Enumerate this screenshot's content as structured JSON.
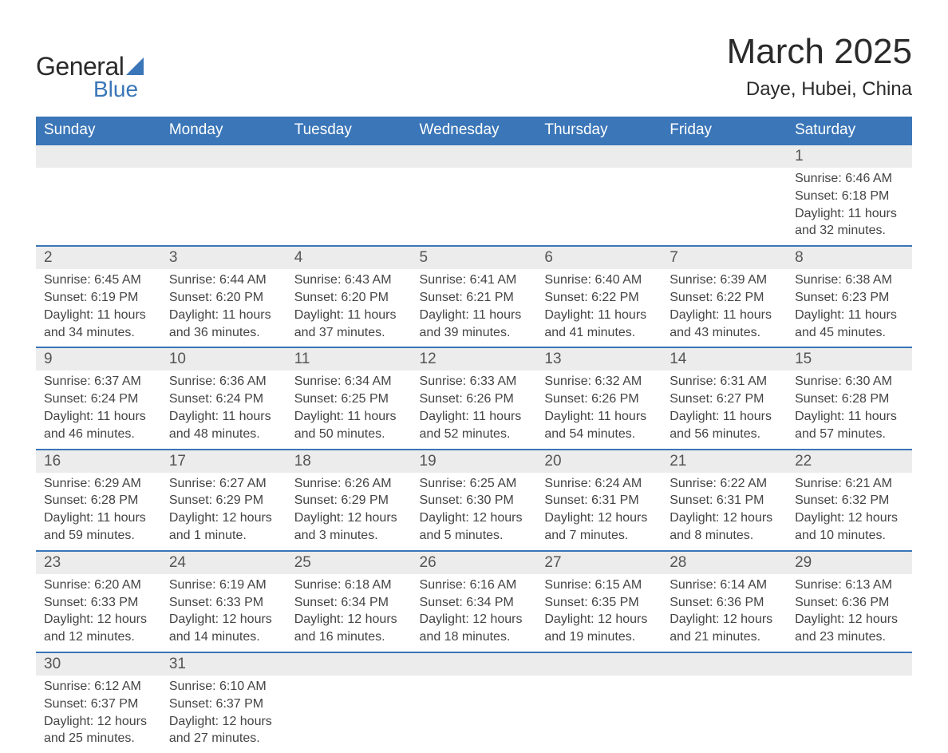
{
  "brand": {
    "word1": "General",
    "word2": "Blue",
    "accent_color": "#3a76b8"
  },
  "title": "March 2025",
  "location": "Daye, Hubei, China",
  "header_bg": "#3a76b8",
  "daynum_bg": "#ececec",
  "text_color": "#333333",
  "weekdays": [
    "Sunday",
    "Monday",
    "Tuesday",
    "Wednesday",
    "Thursday",
    "Friday",
    "Saturday"
  ],
  "weeks": [
    {
      "nums": [
        "",
        "",
        "",
        "",
        "",
        "",
        "1"
      ],
      "details": [
        null,
        null,
        null,
        null,
        null,
        null,
        {
          "sunrise": "Sunrise: 6:46 AM",
          "sunset": "Sunset: 6:18 PM",
          "day1": "Daylight: 11 hours",
          "day2": "and 32 minutes."
        }
      ]
    },
    {
      "nums": [
        "2",
        "3",
        "4",
        "5",
        "6",
        "7",
        "8"
      ],
      "details": [
        {
          "sunrise": "Sunrise: 6:45 AM",
          "sunset": "Sunset: 6:19 PM",
          "day1": "Daylight: 11 hours",
          "day2": "and 34 minutes."
        },
        {
          "sunrise": "Sunrise: 6:44 AM",
          "sunset": "Sunset: 6:20 PM",
          "day1": "Daylight: 11 hours",
          "day2": "and 36 minutes."
        },
        {
          "sunrise": "Sunrise: 6:43 AM",
          "sunset": "Sunset: 6:20 PM",
          "day1": "Daylight: 11 hours",
          "day2": "and 37 minutes."
        },
        {
          "sunrise": "Sunrise: 6:41 AM",
          "sunset": "Sunset: 6:21 PM",
          "day1": "Daylight: 11 hours",
          "day2": "and 39 minutes."
        },
        {
          "sunrise": "Sunrise: 6:40 AM",
          "sunset": "Sunset: 6:22 PM",
          "day1": "Daylight: 11 hours",
          "day2": "and 41 minutes."
        },
        {
          "sunrise": "Sunrise: 6:39 AM",
          "sunset": "Sunset: 6:22 PM",
          "day1": "Daylight: 11 hours",
          "day2": "and 43 minutes."
        },
        {
          "sunrise": "Sunrise: 6:38 AM",
          "sunset": "Sunset: 6:23 PM",
          "day1": "Daylight: 11 hours",
          "day2": "and 45 minutes."
        }
      ]
    },
    {
      "nums": [
        "9",
        "10",
        "11",
        "12",
        "13",
        "14",
        "15"
      ],
      "details": [
        {
          "sunrise": "Sunrise: 6:37 AM",
          "sunset": "Sunset: 6:24 PM",
          "day1": "Daylight: 11 hours",
          "day2": "and 46 minutes."
        },
        {
          "sunrise": "Sunrise: 6:36 AM",
          "sunset": "Sunset: 6:24 PM",
          "day1": "Daylight: 11 hours",
          "day2": "and 48 minutes."
        },
        {
          "sunrise": "Sunrise: 6:34 AM",
          "sunset": "Sunset: 6:25 PM",
          "day1": "Daylight: 11 hours",
          "day2": "and 50 minutes."
        },
        {
          "sunrise": "Sunrise: 6:33 AM",
          "sunset": "Sunset: 6:26 PM",
          "day1": "Daylight: 11 hours",
          "day2": "and 52 minutes."
        },
        {
          "sunrise": "Sunrise: 6:32 AM",
          "sunset": "Sunset: 6:26 PM",
          "day1": "Daylight: 11 hours",
          "day2": "and 54 minutes."
        },
        {
          "sunrise": "Sunrise: 6:31 AM",
          "sunset": "Sunset: 6:27 PM",
          "day1": "Daylight: 11 hours",
          "day2": "and 56 minutes."
        },
        {
          "sunrise": "Sunrise: 6:30 AM",
          "sunset": "Sunset: 6:28 PM",
          "day1": "Daylight: 11 hours",
          "day2": "and 57 minutes."
        }
      ]
    },
    {
      "nums": [
        "16",
        "17",
        "18",
        "19",
        "20",
        "21",
        "22"
      ],
      "details": [
        {
          "sunrise": "Sunrise: 6:29 AM",
          "sunset": "Sunset: 6:28 PM",
          "day1": "Daylight: 11 hours",
          "day2": "and 59 minutes."
        },
        {
          "sunrise": "Sunrise: 6:27 AM",
          "sunset": "Sunset: 6:29 PM",
          "day1": "Daylight: 12 hours",
          "day2": "and 1 minute."
        },
        {
          "sunrise": "Sunrise: 6:26 AM",
          "sunset": "Sunset: 6:29 PM",
          "day1": "Daylight: 12 hours",
          "day2": "and 3 minutes."
        },
        {
          "sunrise": "Sunrise: 6:25 AM",
          "sunset": "Sunset: 6:30 PM",
          "day1": "Daylight: 12 hours",
          "day2": "and 5 minutes."
        },
        {
          "sunrise": "Sunrise: 6:24 AM",
          "sunset": "Sunset: 6:31 PM",
          "day1": "Daylight: 12 hours",
          "day2": "and 7 minutes."
        },
        {
          "sunrise": "Sunrise: 6:22 AM",
          "sunset": "Sunset: 6:31 PM",
          "day1": "Daylight: 12 hours",
          "day2": "and 8 minutes."
        },
        {
          "sunrise": "Sunrise: 6:21 AM",
          "sunset": "Sunset: 6:32 PM",
          "day1": "Daylight: 12 hours",
          "day2": "and 10 minutes."
        }
      ]
    },
    {
      "nums": [
        "23",
        "24",
        "25",
        "26",
        "27",
        "28",
        "29"
      ],
      "details": [
        {
          "sunrise": "Sunrise: 6:20 AM",
          "sunset": "Sunset: 6:33 PM",
          "day1": "Daylight: 12 hours",
          "day2": "and 12 minutes."
        },
        {
          "sunrise": "Sunrise: 6:19 AM",
          "sunset": "Sunset: 6:33 PM",
          "day1": "Daylight: 12 hours",
          "day2": "and 14 minutes."
        },
        {
          "sunrise": "Sunrise: 6:18 AM",
          "sunset": "Sunset: 6:34 PM",
          "day1": "Daylight: 12 hours",
          "day2": "and 16 minutes."
        },
        {
          "sunrise": "Sunrise: 6:16 AM",
          "sunset": "Sunset: 6:34 PM",
          "day1": "Daylight: 12 hours",
          "day2": "and 18 minutes."
        },
        {
          "sunrise": "Sunrise: 6:15 AM",
          "sunset": "Sunset: 6:35 PM",
          "day1": "Daylight: 12 hours",
          "day2": "and 19 minutes."
        },
        {
          "sunrise": "Sunrise: 6:14 AM",
          "sunset": "Sunset: 6:36 PM",
          "day1": "Daylight: 12 hours",
          "day2": "and 21 minutes."
        },
        {
          "sunrise": "Sunrise: 6:13 AM",
          "sunset": "Sunset: 6:36 PM",
          "day1": "Daylight: 12 hours",
          "day2": "and 23 minutes."
        }
      ]
    },
    {
      "nums": [
        "30",
        "31",
        "",
        "",
        "",
        "",
        ""
      ],
      "details": [
        {
          "sunrise": "Sunrise: 6:12 AM",
          "sunset": "Sunset: 6:37 PM",
          "day1": "Daylight: 12 hours",
          "day2": "and 25 minutes."
        },
        {
          "sunrise": "Sunrise: 6:10 AM",
          "sunset": "Sunset: 6:37 PM",
          "day1": "Daylight: 12 hours",
          "day2": "and 27 minutes."
        },
        null,
        null,
        null,
        null,
        null
      ]
    }
  ]
}
